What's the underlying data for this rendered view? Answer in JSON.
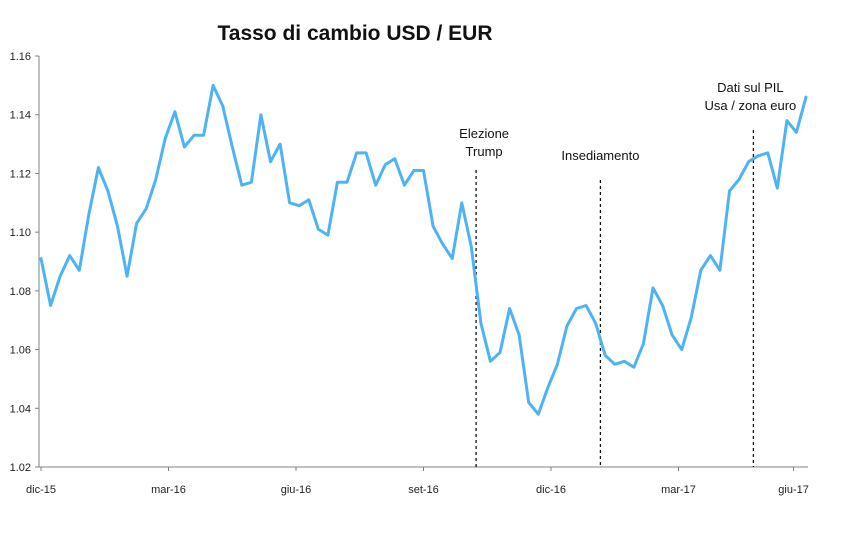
{
  "chart_data": {
    "type": "line",
    "title": "Tasso di cambio USD / EUR",
    "xlabel": "",
    "ylabel": "",
    "ylim": [
      1.02,
      1.16
    ],
    "yticks": [
      "1.02",
      "1.04",
      "1.06",
      "1.08",
      "1.10",
      "1.12",
      "1.14",
      "1.16"
    ],
    "xticks": [
      "dic-15",
      "mar-16",
      "giu-16",
      "set-16",
      "dic-16",
      "mar-17",
      "giu-17"
    ],
    "grid": false,
    "legend": "none",
    "line_color": "#4DB3F5",
    "series": [
      {
        "values": [
          1.091,
          1.075,
          1.085,
          1.092,
          1.087,
          1.106,
          1.122,
          1.114,
          1.102,
          1.085,
          1.103,
          1.108,
          1.118,
          1.132,
          1.141,
          1.129,
          1.133,
          1.133,
          1.15,
          1.143,
          1.129,
          1.116,
          1.117,
          1.14,
          1.124,
          1.13,
          1.11,
          1.109,
          1.111,
          1.101,
          1.099,
          1.117,
          1.117,
          1.127,
          1.127,
          1.116,
          1.123,
          1.125,
          1.116,
          1.121,
          1.121,
          1.102,
          1.096,
          1.091,
          1.11,
          1.095,
          1.069,
          1.056,
          1.059,
          1.074,
          1.065,
          1.042,
          1.038,
          1.047,
          1.055,
          1.068,
          1.074,
          1.075,
          1.069,
          1.058,
          1.055,
          1.056,
          1.054,
          1.062,
          1.081,
          1.075,
          1.065,
          1.06,
          1.071,
          1.087,
          1.092,
          1.087,
          1.114,
          1.118,
          1.124,
          1.126,
          1.127,
          1.115,
          1.138,
          1.134,
          1.146
        ]
      }
    ],
    "annotations": [
      {
        "lines": [
          "Elezione",
          "Trump"
        ],
        "x_index": 45.5
      },
      {
        "lines": [
          "Insediamento"
        ],
        "x_index": 58.5
      },
      {
        "lines": [
          "Dati sul PIL",
          "Usa / zona euro"
        ],
        "x_index": 74.5
      }
    ]
  }
}
